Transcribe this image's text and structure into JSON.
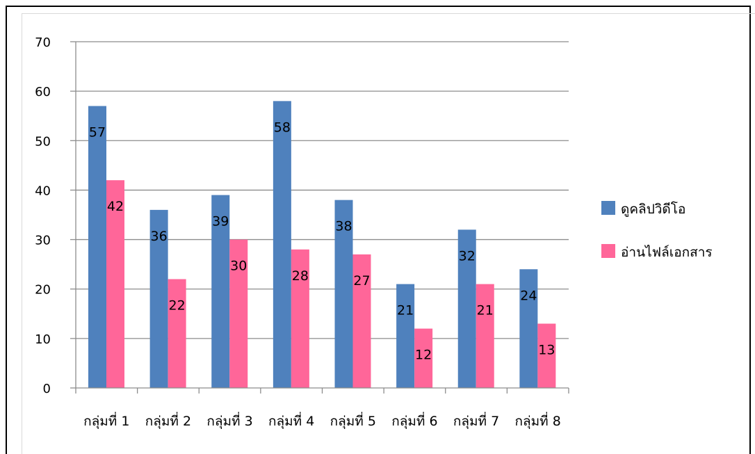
{
  "chart_data": {
    "type": "bar",
    "categories": [
      "กลุ่มที่ 1",
      "กลุ่มที่ 2",
      "กลุ่มที่ 3",
      "กลุ่มที่ 4",
      "กลุ่มที่ 5",
      "กลุ่มที่ 6",
      "กลุ่มที่ 7",
      "กลุ่มที่ 8"
    ],
    "series": [
      {
        "name": "ดูคลิปวิดีโอ",
        "values": [
          57,
          36,
          39,
          58,
          38,
          21,
          32,
          24
        ],
        "color": "#4f81bd"
      },
      {
        "name": "อ่านไฟล์เอกสาร",
        "values": [
          42,
          22,
          30,
          28,
          27,
          12,
          21,
          13
        ],
        "color": "#ff6699"
      }
    ],
    "ylim": [
      0,
      70
    ],
    "yticks": [
      0,
      10,
      20,
      30,
      40,
      50,
      60,
      70
    ],
    "grid": true,
    "legend": "right",
    "data_labels": true
  }
}
